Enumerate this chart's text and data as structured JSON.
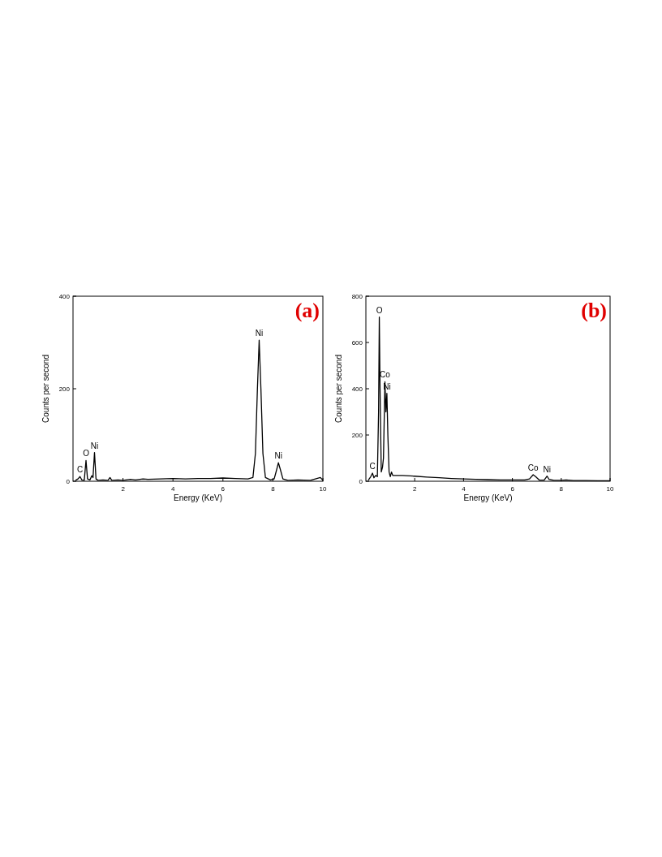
{
  "chart_data": [
    {
      "type": "line",
      "title": "(a)",
      "xlabel": "Energy (KeV)",
      "ylabel": "Counts per second",
      "xlim": [
        0,
        10
      ],
      "ylim": [
        0,
        400
      ],
      "xticks": [
        2,
        4,
        6,
        8,
        10
      ],
      "yticks": [
        0,
        200,
        400
      ],
      "grid": false,
      "series": [
        {
          "color": "#000000",
          "x": [
            0.1,
            0.2,
            0.28,
            0.35,
            0.45,
            0.52,
            0.58,
            0.68,
            0.75,
            0.8,
            0.86,
            0.92,
            1.0,
            1.2,
            1.4,
            1.48,
            1.55,
            1.8,
            2.0,
            2.3,
            2.5,
            2.8,
            3.0,
            3.5,
            4.0,
            4.5,
            5.0,
            5.5,
            6.0,
            6.5,
            7.0,
            7.2,
            7.3,
            7.38,
            7.45,
            7.52,
            7.6,
            7.7,
            7.9,
            8.05,
            8.15,
            8.22,
            8.3,
            8.4,
            8.6,
            9.0,
            9.5,
            9.9,
            10
          ],
          "values": [
            2,
            5,
            10,
            3,
            2,
            45,
            5,
            3,
            12,
            8,
            62,
            5,
            2,
            3,
            2,
            8,
            2,
            3,
            2,
            4,
            3,
            5,
            4,
            5,
            6,
            5,
            6,
            6,
            7,
            6,
            5,
            8,
            60,
            200,
            305,
            200,
            60,
            8,
            3,
            5,
            25,
            40,
            25,
            5,
            2,
            3,
            2,
            8,
            2
          ]
        }
      ],
      "annotations": [
        {
          "text": "C",
          "x": 0.28,
          "y": 10
        },
        {
          "text": "O",
          "x": 0.52,
          "y": 45
        },
        {
          "text": "Ni",
          "x": 0.86,
          "y": 62
        },
        {
          "text": "Ni",
          "x": 7.45,
          "y": 305
        },
        {
          "text": "Ni",
          "x": 8.22,
          "y": 40
        }
      ]
    },
    {
      "type": "line",
      "title": "(b)",
      "xlabel": "Energy (KeV)",
      "ylabel": "Counts per second",
      "xlim": [
        0,
        10
      ],
      "ylim": [
        0,
        800
      ],
      "xticks": [
        2,
        4,
        6,
        8,
        10
      ],
      "yticks": [
        0,
        200,
        400,
        600,
        800
      ],
      "grid": false,
      "series": [
        {
          "color": "#000000",
          "x": [
            0.1,
            0.2,
            0.27,
            0.33,
            0.4,
            0.47,
            0.52,
            0.55,
            0.58,
            0.63,
            0.68,
            0.72,
            0.78,
            0.82,
            0.86,
            0.9,
            0.95,
            1.0,
            1.05,
            1.1,
            1.5,
            2.0,
            2.5,
            3.0,
            3.5,
            4.0,
            4.5,
            5.0,
            5.5,
            6.0,
            6.5,
            6.7,
            6.85,
            6.95,
            7.1,
            7.3,
            7.42,
            7.5,
            7.7,
            8.0,
            8.2,
            8.5,
            9.0,
            9.5,
            10
          ],
          "values": [
            5,
            20,
            35,
            15,
            25,
            20,
            300,
            710,
            400,
            40,
            60,
            100,
            430,
            300,
            380,
            200,
            40,
            20,
            40,
            25,
            25,
            22,
            18,
            15,
            12,
            10,
            8,
            7,
            6,
            6,
            6,
            10,
            28,
            20,
            5,
            5,
            22,
            8,
            4,
            4,
            6,
            3,
            3,
            2,
            2
          ]
        }
      ],
      "annotations": [
        {
          "text": "C",
          "x": 0.27,
          "y": 35
        },
        {
          "text": "O",
          "x": 0.55,
          "y": 710
        },
        {
          "text": "Co",
          "x": 0.78,
          "y": 430
        },
        {
          "text": "Ni",
          "x": 0.86,
          "y": 380
        },
        {
          "text": "Co",
          "x": 6.85,
          "y": 28
        },
        {
          "text": "Ni",
          "x": 7.42,
          "y": 22
        }
      ]
    }
  ]
}
